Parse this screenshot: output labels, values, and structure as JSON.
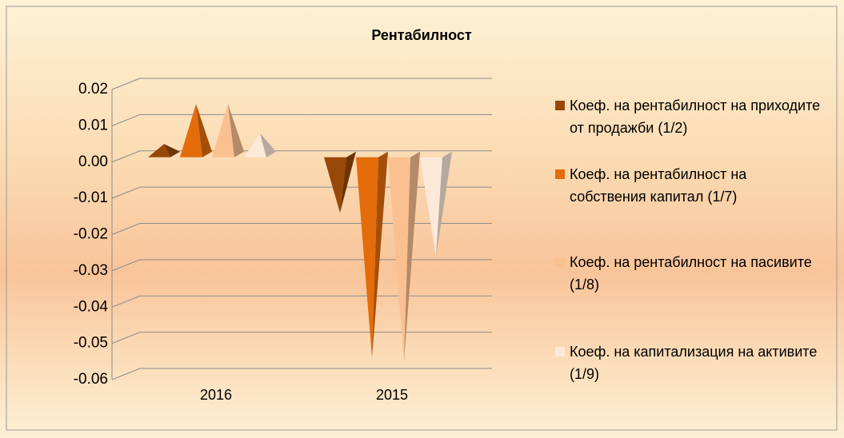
{
  "chart_data": {
    "type": "pyramid",
    "title": "Рентабилност",
    "categories": [
      "2016",
      "2015"
    ],
    "series": [
      {
        "name": "Коеф. на рентабилност на приходите от продажби (1/2)",
        "color": "#984807",
        "values": [
          0.005,
          -0.014
        ]
      },
      {
        "name": "Коеф. на рентабилност на собствения капитал (1/7)",
        "color": "#e46c0a",
        "values": [
          0.016,
          -0.054
        ]
      },
      {
        "name": "Коеф. на рентабилност на пасивите (1/8)",
        "color": "#fac090",
        "values": [
          0.016,
          -0.055
        ]
      },
      {
        "name": "Коеф. на капитализация на активите (1/9)",
        "color": "#fde9d9",
        "values": [
          0.008,
          -0.026
        ]
      }
    ],
    "ylim": [
      -0.06,
      0.02
    ],
    "yticks": [
      -0.06,
      -0.05,
      -0.04,
      -0.03,
      -0.02,
      -0.01,
      {
        "value": 0,
        "label": "0.00"
      },
      0.01,
      0.02
    ],
    "grid": true
  }
}
